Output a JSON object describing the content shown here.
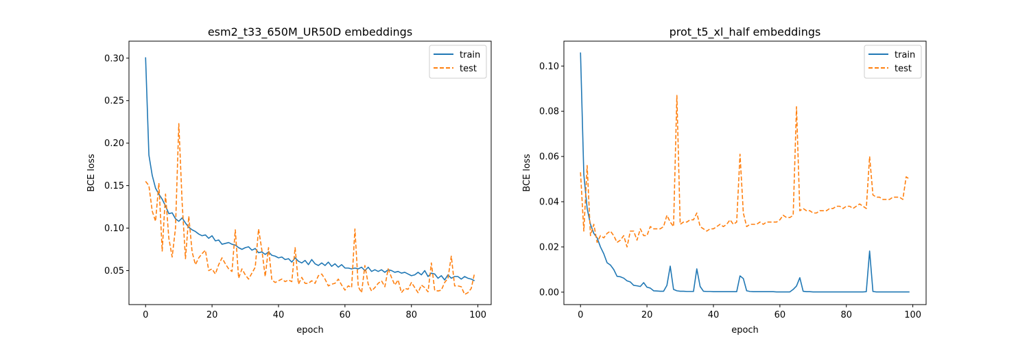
{
  "colors": {
    "train": "#1f77b4",
    "test": "#ff7f0e"
  },
  "chart_data": [
    {
      "type": "line",
      "title": "esm2_t33_650M_UR50D embeddings",
      "xlabel": "epoch",
      "ylabel": "BCE loss",
      "xlim": [
        -5,
        104
      ],
      "ylim": [
        0.01,
        0.32
      ],
      "xticks": [
        0,
        20,
        40,
        60,
        80,
        100
      ],
      "yticks": [
        0.05,
        0.1,
        0.15,
        0.2,
        0.25,
        0.3
      ],
      "ytick_labels": [
        "0.05",
        "0.10",
        "0.15",
        "0.20",
        "0.25",
        "0.30"
      ],
      "legend": "top-right",
      "grid": false,
      "series": [
        {
          "name": "train",
          "style": "solid",
          "values": [
            0.301,
            0.186,
            0.162,
            0.147,
            0.14,
            0.134,
            0.126,
            0.117,
            0.118,
            0.111,
            0.108,
            0.112,
            0.106,
            0.101,
            0.098,
            0.096,
            0.093,
            0.091,
            0.092,
            0.088,
            0.091,
            0.085,
            0.086,
            0.081,
            0.082,
            0.083,
            0.081,
            0.08,
            0.077,
            0.075,
            0.077,
            0.078,
            0.074,
            0.076,
            0.071,
            0.072,
            0.069,
            0.072,
            0.068,
            0.067,
            0.065,
            0.066,
            0.063,
            0.064,
            0.06,
            0.065,
            0.061,
            0.059,
            0.062,
            0.057,
            0.063,
            0.058,
            0.056,
            0.059,
            0.056,
            0.06,
            0.055,
            0.058,
            0.054,
            0.057,
            0.053,
            0.053,
            0.052,
            0.053,
            0.052,
            0.054,
            0.05,
            0.054,
            0.049,
            0.051,
            0.049,
            0.051,
            0.048,
            0.051,
            0.05,
            0.048,
            0.049,
            0.047,
            0.048,
            0.046,
            0.044,
            0.045,
            0.048,
            0.045,
            0.05,
            0.043,
            0.047,
            0.046,
            0.041,
            0.044,
            0.039,
            0.045,
            0.041,
            0.043,
            0.043,
            0.04,
            0.043,
            0.041,
            0.04,
            0.038
          ]
        },
        {
          "name": "test",
          "style": "dashed",
          "values": [
            0.155,
            0.15,
            0.12,
            0.108,
            0.153,
            0.073,
            0.14,
            0.088,
            0.066,
            0.1,
            0.223,
            0.13,
            0.064,
            0.114,
            0.072,
            0.057,
            0.065,
            0.07,
            0.074,
            0.05,
            0.052,
            0.046,
            0.057,
            0.065,
            0.058,
            0.052,
            0.049,
            0.098,
            0.041,
            0.052,
            0.045,
            0.04,
            0.047,
            0.054,
            0.099,
            0.074,
            0.043,
            0.077,
            0.039,
            0.036,
            0.038,
            0.04,
            0.037,
            0.039,
            0.037,
            0.077,
            0.034,
            0.042,
            0.035,
            0.035,
            0.038,
            0.035,
            0.044,
            0.046,
            0.04,
            0.032,
            0.034,
            0.035,
            0.04,
            0.033,
            0.027,
            0.032,
            0.03,
            0.099,
            0.031,
            0.024,
            0.056,
            0.034,
            0.026,
            0.03,
            0.035,
            0.038,
            0.031,
            0.052,
            0.042,
            0.033,
            0.039,
            0.024,
            0.029,
            0.028,
            0.036,
            0.03,
            0.024,
            0.033,
            0.03,
            0.025,
            0.059,
            0.027,
            0.026,
            0.027,
            0.036,
            0.041,
            0.067,
            0.032,
            0.032,
            0.031,
            0.022,
            0.024,
            0.029,
            0.047
          ]
        }
      ]
    },
    {
      "type": "line",
      "title": "prot_t5_xl_half embeddings",
      "xlabel": "epoch",
      "ylabel": "BCE loss",
      "xlim": [
        -5,
        104
      ],
      "ylim": [
        -0.0055,
        0.111
      ],
      "xticks": [
        0,
        20,
        40,
        60,
        80,
        100
      ],
      "yticks": [
        0.0,
        0.02,
        0.04,
        0.06,
        0.08,
        0.1
      ],
      "ytick_labels": [
        "0.00",
        "0.02",
        "0.04",
        "0.06",
        "0.08",
        "0.10"
      ],
      "legend": "top-right",
      "grid": false,
      "series": [
        {
          "name": "train",
          "style": "solid",
          "values": [
            0.106,
            0.052,
            0.037,
            0.03,
            0.026,
            0.024,
            0.02,
            0.017,
            0.013,
            0.012,
            0.01,
            0.007,
            0.0068,
            0.0062,
            0.005,
            0.0045,
            0.003,
            0.0028,
            0.0025,
            0.0042,
            0.0022,
            0.0018,
            0.0006,
            0.0005,
            0.0004,
            0.0004,
            0.003,
            0.0115,
            0.0012,
            0.0006,
            0.0004,
            0.0004,
            0.0003,
            0.0003,
            0.0003,
            0.0103,
            0.0025,
            0.0004,
            0.0003,
            0.0003,
            0.0002,
            0.0002,
            0.0002,
            0.0002,
            0.0002,
            0.0002,
            0.0002,
            0.0002,
            0.0072,
            0.006,
            0.0006,
            0.0003,
            0.0002,
            0.0002,
            0.0002,
            0.0002,
            0.0002,
            0.0002,
            0.0002,
            0.0001,
            0.0001,
            0.0001,
            0.0001,
            0.0001,
            0.0012,
            0.0027,
            0.0064,
            0.0004,
            0.0002,
            0.0002,
            0.0001,
            0.0001,
            0.0001,
            0.0001,
            0.0001,
            0.0001,
            0.0001,
            0.0001,
            0.0001,
            0.0001,
            0.0001,
            0.0001,
            0.0001,
            0.0001,
            0.0001,
            0.0001,
            0.0002,
            0.0182,
            0.0003,
            0.0001,
            0.0001,
            0.0001,
            0.0001,
            0.0001,
            0.0001,
            0.0001,
            0.0001,
            0.0001,
            0.0001,
            0.0001
          ]
        },
        {
          "name": "test",
          "style": "dashed",
          "values": [
            0.053,
            0.027,
            0.056,
            0.025,
            0.03,
            0.022,
            0.025,
            0.024,
            0.026,
            0.027,
            0.025,
            0.022,
            0.023,
            0.025,
            0.02,
            0.027,
            0.027,
            0.023,
            0.028,
            0.025,
            0.025,
            0.029,
            0.028,
            0.028,
            0.028,
            0.029,
            0.034,
            0.031,
            0.029,
            0.087,
            0.03,
            0.031,
            0.031,
            0.032,
            0.032,
            0.035,
            0.029,
            0.028,
            0.027,
            0.028,
            0.028,
            0.029,
            0.03,
            0.029,
            0.03,
            0.032,
            0.03,
            0.031,
            0.061,
            0.035,
            0.029,
            0.03,
            0.03,
            0.03,
            0.031,
            0.03,
            0.031,
            0.031,
            0.031,
            0.031,
            0.032,
            0.034,
            0.033,
            0.033,
            0.034,
            0.082,
            0.036,
            0.037,
            0.036,
            0.036,
            0.035,
            0.035,
            0.036,
            0.036,
            0.036,
            0.037,
            0.037,
            0.038,
            0.038,
            0.037,
            0.038,
            0.038,
            0.037,
            0.038,
            0.039,
            0.038,
            0.037,
            0.06,
            0.043,
            0.042,
            0.042,
            0.041,
            0.041,
            0.041,
            0.042,
            0.042,
            0.042,
            0.041,
            0.051,
            0.05
          ]
        }
      ]
    }
  ]
}
